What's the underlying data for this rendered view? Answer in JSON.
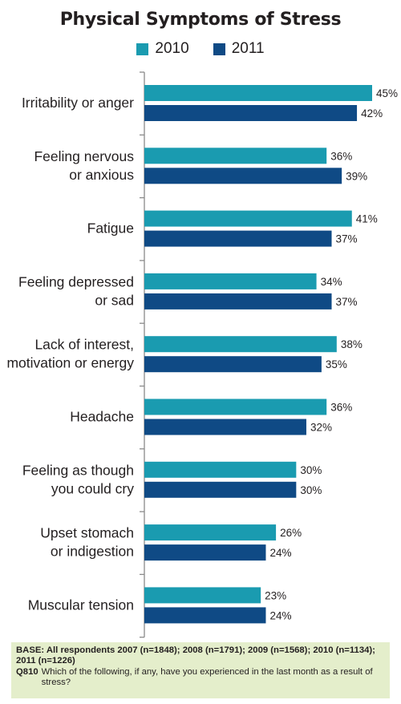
{
  "chart_data": {
    "type": "bar",
    "orientation": "horizontal",
    "title": "Physical Symptoms of Stress",
    "categories": [
      "Irritability or anger",
      "Feeling nervous or anxious",
      "Fatigue",
      "Feeling depressed or sad",
      "Lack of interest, motivation or energy",
      "Headache",
      "Feeling as though you could cry",
      "Upset stomach or indigestion",
      "Muscular tension"
    ],
    "category_lines": [
      [
        "Irritability or anger"
      ],
      [
        "Feeling nervous",
        "or anxious"
      ],
      [
        "Fatigue"
      ],
      [
        "Feeling depressed",
        "or sad"
      ],
      [
        "Lack of interest,",
        "motivation or energy"
      ],
      [
        "Headache"
      ],
      [
        "Feeling as though",
        "you could cry"
      ],
      [
        "Upset stomach",
        "or indigestion"
      ],
      [
        "Muscular tension"
      ]
    ],
    "series": [
      {
        "name": "2010",
        "color": "#1a9bb0",
        "values": [
          45,
          36,
          41,
          34,
          38,
          36,
          30,
          26,
          23
        ]
      },
      {
        "name": "2011",
        "color": "#0f4a85",
        "values": [
          42,
          39,
          37,
          37,
          35,
          32,
          30,
          24,
          24
        ]
      }
    ],
    "value_suffix": "%",
    "xlim": [
      0,
      45
    ],
    "legend_position": "top"
  },
  "footnote": {
    "base_label": "BASE: All respondents 2007 (n=1848); 2008 (n=1791); 2009 (n=1568); 2010 (n=1134); 2011 (n=1226)",
    "question_id": "Q810",
    "question_text": "Which of the following, if any, have you experienced in the last month as a result of stress?"
  }
}
